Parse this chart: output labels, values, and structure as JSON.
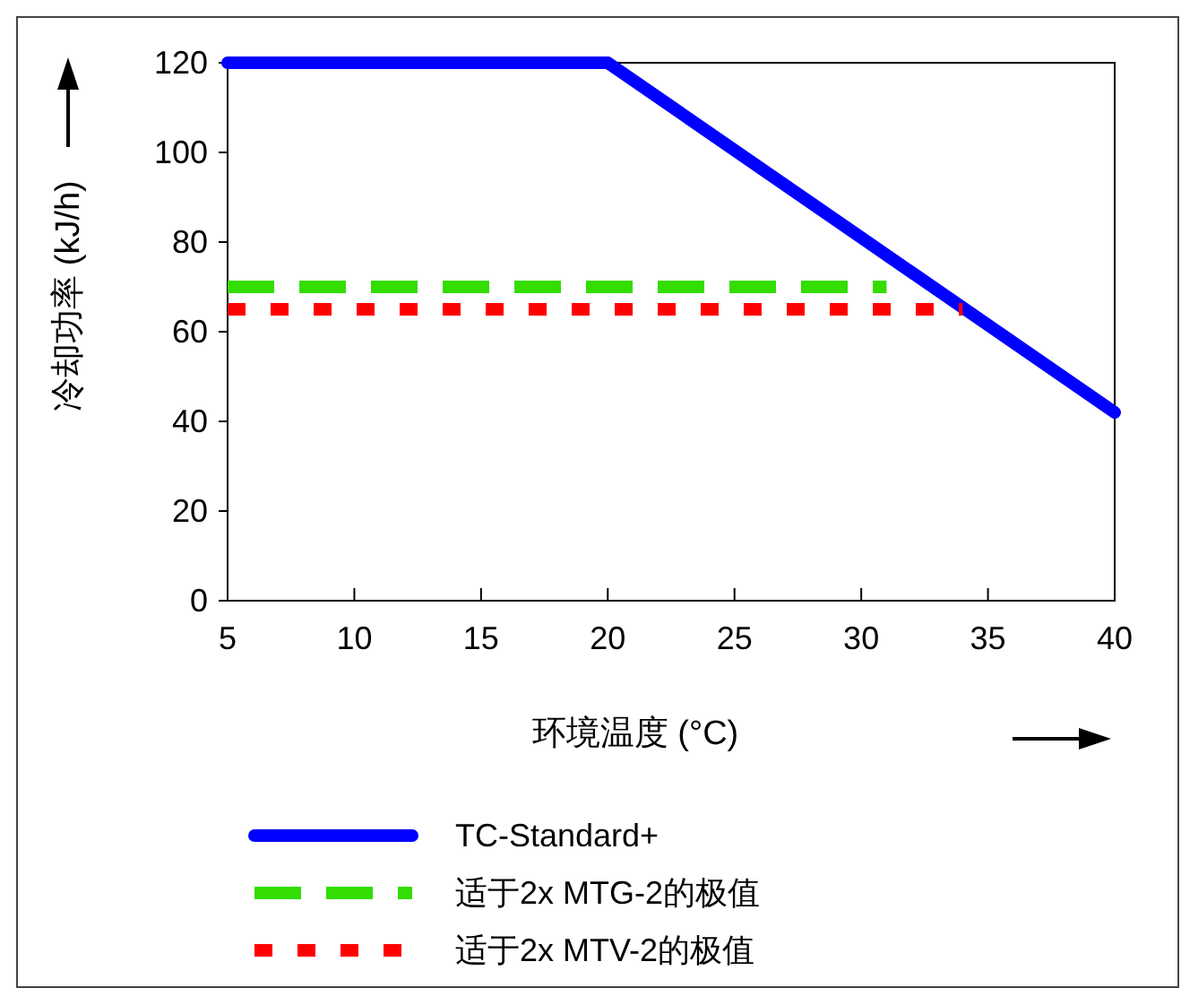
{
  "chart_data": {
    "type": "line",
    "xlabel": "环境温度 (°C)",
    "ylabel": "冷却功率 (kJ/h)",
    "xlim": [
      5,
      40
    ],
    "xticks": [
      5,
      10,
      15,
      20,
      25,
      30,
      35,
      40
    ],
    "ylim": [
      0,
      120
    ],
    "yticks": [
      0,
      20,
      40,
      60,
      80,
      100,
      120
    ],
    "grid": false,
    "legend": "bottom",
    "marker": "none",
    "series": [
      {
        "name": "TC-Standard+",
        "color": "#0000ff",
        "line_style": "solid",
        "x": [
          5,
          20,
          40
        ],
        "values": [
          120,
          120,
          42
        ]
      },
      {
        "name": "适于2x MTG-2的极值",
        "color": "#33dd00",
        "line_style": "dashed",
        "x": [
          5,
          31
        ],
        "values": [
          70,
          70
        ]
      },
      {
        "name": "适于2x MTV-2的极值",
        "color": "#ff0000",
        "line_style": "dotted",
        "x": [
          5,
          34
        ],
        "values": [
          65,
          65
        ]
      }
    ]
  }
}
